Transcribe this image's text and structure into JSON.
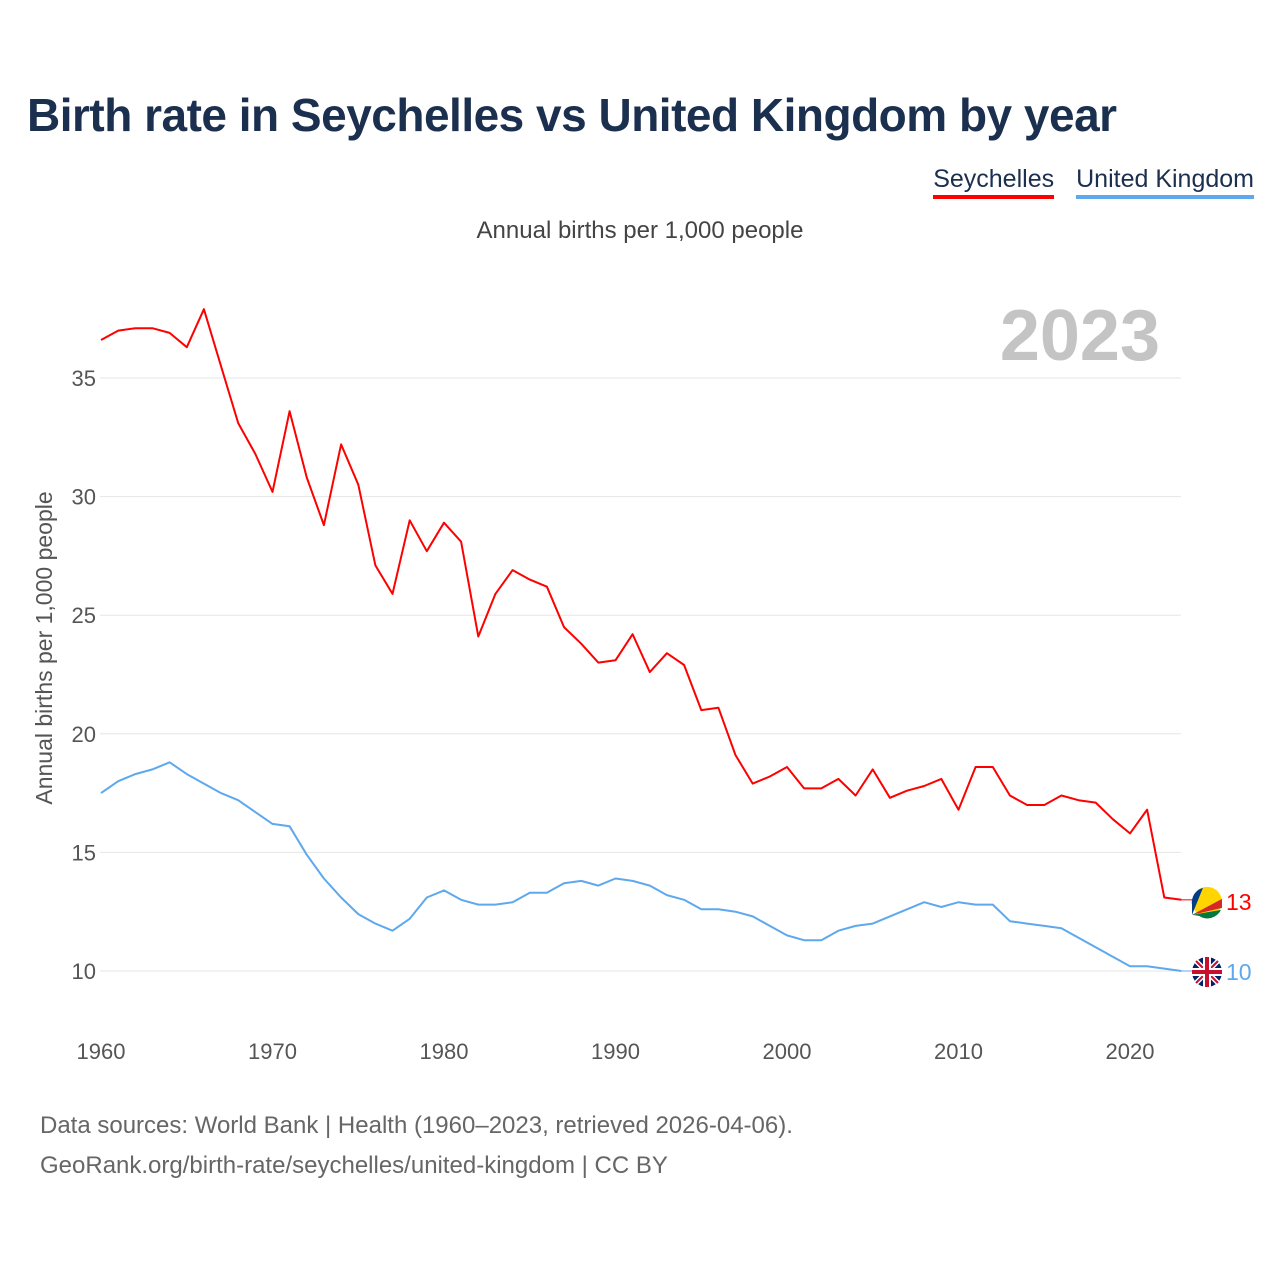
{
  "title": "Birth rate in Seychelles vs United Kingdom by year",
  "subtitle": "Annual births per 1,000 people",
  "source_line1": "Data sources: World Bank | Health (1960–2023, retrieved 2026-04-06).",
  "source_line2": "GeoRank.org/birth-rate/seychelles/united-kingdom | CC BY",
  "year_label": "2023",
  "chart_data": {
    "type": "line",
    "title": "Birth rate in Seychelles vs United Kingdom by year",
    "xlabel": "",
    "ylabel": "Annual births per 1,000 people",
    "xlim": [
      1960,
      2023
    ],
    "ylim": [
      8,
      39
    ],
    "xticks": [
      1960,
      1970,
      1980,
      1990,
      2000,
      2010,
      2020
    ],
    "yticks": [
      10,
      15,
      20,
      25,
      30,
      35
    ],
    "legend": "top-right",
    "x_start": 1960,
    "series": [
      {
        "name": "Seychelles",
        "color": "#ff0000",
        "end_label": "13",
        "values": [
          36.6,
          37.0,
          37.1,
          37.1,
          36.9,
          36.3,
          37.9,
          35.5,
          33.1,
          31.8,
          30.2,
          33.6,
          30.8,
          28.8,
          32.2,
          30.5,
          27.1,
          25.9,
          29.0,
          27.7,
          28.9,
          28.1,
          24.1,
          25.9,
          26.9,
          26.5,
          26.2,
          24.5,
          23.8,
          23.0,
          23.1,
          24.2,
          22.6,
          23.4,
          22.9,
          21.0,
          21.1,
          19.1,
          17.9,
          18.2,
          18.6,
          17.7,
          17.7,
          18.1,
          17.4,
          18.5,
          17.3,
          17.6,
          17.8,
          18.1,
          16.8,
          18.6,
          18.6,
          17.4,
          17.0,
          17.0,
          17.4,
          17.2,
          17.1,
          16.4,
          15.8,
          16.8,
          13.1,
          13.0
        ]
      },
      {
        "name": "United Kingdom",
        "color": "#5ea8ee",
        "end_label": "10",
        "values": [
          17.5,
          18.0,
          18.3,
          18.5,
          18.8,
          18.3,
          17.9,
          17.5,
          17.2,
          16.7,
          16.2,
          16.1,
          14.9,
          13.9,
          13.1,
          12.4,
          12.0,
          11.7,
          12.2,
          13.1,
          13.4,
          13.0,
          12.8,
          12.8,
          12.9,
          13.3,
          13.3,
          13.7,
          13.8,
          13.6,
          13.9,
          13.8,
          13.6,
          13.2,
          13.0,
          12.6,
          12.6,
          12.5,
          12.3,
          11.9,
          11.5,
          11.3,
          11.3,
          11.7,
          11.9,
          12.0,
          12.3,
          12.6,
          12.9,
          12.7,
          12.9,
          12.8,
          12.8,
          12.1,
          12.0,
          11.9,
          11.8,
          11.4,
          11.0,
          10.6,
          10.2,
          10.2,
          10.1,
          10.0
        ]
      }
    ]
  }
}
